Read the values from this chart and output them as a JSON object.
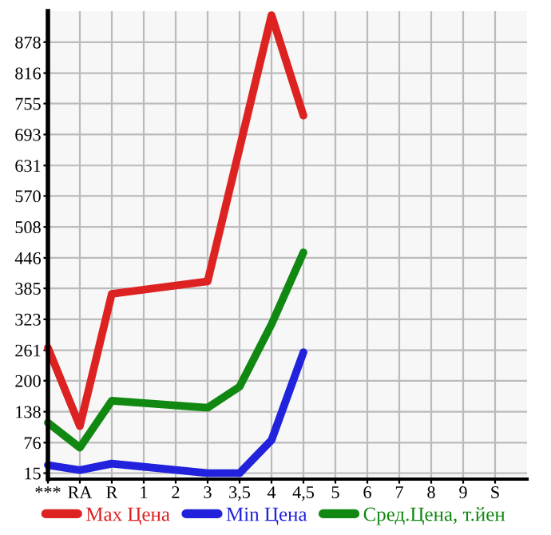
{
  "chart_data": {
    "type": "line",
    "categories": [
      "***",
      "RA",
      "R",
      "1",
      "2",
      "3",
      "3,5",
      "4",
      "4,5",
      "5",
      "6",
      "7",
      "8",
      "9",
      "S"
    ],
    "series": [
      {
        "name": "Max Цена",
        "color": "#dd2222",
        "values": [
          266,
          109,
          374,
          null,
          null,
          399,
          null,
          932,
          731,
          null,
          null,
          null,
          null,
          null,
          null
        ]
      },
      {
        "name": "Min Цена",
        "color": "#2222dd",
        "values": [
          31,
          21,
          34,
          null,
          null,
          15,
          15,
          81,
          257,
          null,
          null,
          null,
          null,
          null,
          null
        ]
      },
      {
        "name": "Сред.Цена, т.йен",
        "color": "#118811",
        "values": [
          116,
          66,
          160,
          null,
          null,
          146,
          188,
          313,
          457,
          null,
          null,
          null,
          null,
          null,
          null
        ]
      }
    ],
    "ylim": [
      3,
      940
    ],
    "yticks": [
      15,
      76,
      138,
      200,
      261,
      323,
      385,
      446,
      508,
      570,
      631,
      693,
      755,
      816,
      878
    ],
    "grid": true,
    "legend": "bottom",
    "marker": "none",
    "line_style": "solid"
  }
}
